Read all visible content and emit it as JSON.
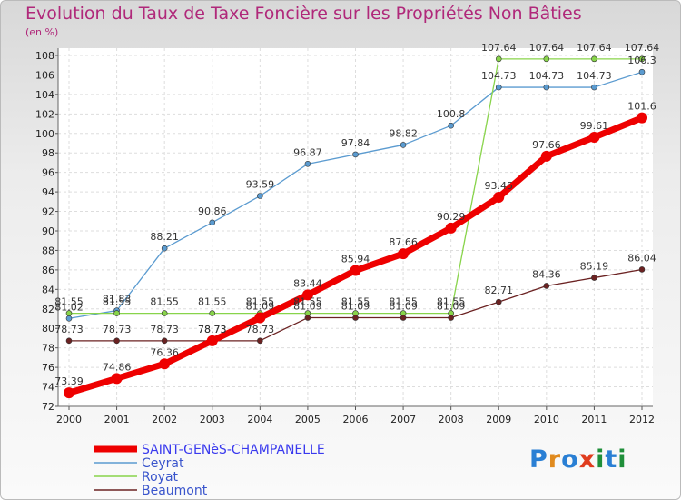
{
  "title": "Evolution du Taux de Taxe Foncière sur les Propriétés Non Bâties",
  "subtitle": "(en %)",
  "logo": {
    "letters": [
      "P",
      "r",
      "o",
      "x",
      "i",
      "t",
      "i"
    ],
    "colors": [
      "#2a7fd4",
      "#e08a1e",
      "#2a7fd4",
      "#e03c1e",
      "#1f8f3a",
      "#2a7fd4",
      "#1f8f3a"
    ]
  },
  "chart_data": {
    "type": "line",
    "x": [
      "2000",
      "2001",
      "2002",
      "2003",
      "2004",
      "2005",
      "2006",
      "2007",
      "2008",
      "2009",
      "2010",
      "2011",
      "2012"
    ],
    "ylim": [
      72,
      108
    ],
    "yticks": [
      "72",
      "74",
      "76",
      "78",
      "80",
      "82",
      "84",
      "86",
      "88",
      "90",
      "92",
      "94",
      "96",
      "98",
      "100",
      "102",
      "104",
      "106",
      "108"
    ],
    "grid": true,
    "legend_position": "bottom-left",
    "series": [
      {
        "name": "SAINT-GENèS-CHAMPANELLE",
        "color": "#ee0000",
        "values": [
          73.39,
          74.86,
          76.36,
          78.73,
          81.09,
          83.44,
          85.94,
          87.66,
          90.29,
          93.45,
          97.66,
          99.61,
          101.6
        ],
        "labels": [
          "73.39",
          "74.86",
          "76.36",
          "78.73",
          "81.09",
          "83.44",
          "85.94",
          "87.66",
          "90.29",
          "93.45",
          "97.66",
          "99.61",
          "101.6"
        ]
      },
      {
        "name": "Ceyrat",
        "color": "#5b9bd0",
        "values": [
          81.02,
          81.83,
          88.21,
          90.86,
          93.59,
          96.87,
          97.84,
          98.82,
          100.8,
          104.73,
          104.73,
          104.73,
          106.3
        ],
        "labels": [
          "81.02",
          "81.83",
          "88.21",
          "90.86",
          "93.59",
          "96.87",
          "97.84",
          "98.82",
          "100.8",
          "104.73",
          "104.73",
          "104.73",
          "106.3"
        ]
      },
      {
        "name": "Royat",
        "color": "#88d44a",
        "values": [
          81.55,
          81.55,
          81.55,
          81.55,
          81.55,
          81.55,
          81.55,
          81.55,
          81.55,
          107.64,
          107.64,
          107.64,
          107.64
        ],
        "labels": [
          "81.55",
          "81.55",
          "81.55",
          "81.55",
          "81.55",
          "81.55",
          "81.55",
          "81.55",
          "81.55",
          "107.64",
          "107.64",
          "107.64",
          "107.64"
        ]
      },
      {
        "name": "Beaumont",
        "color": "#6b2222",
        "values": [
          78.73,
          78.73,
          78.73,
          78.73,
          78.73,
          81.09,
          81.09,
          81.09,
          81.09,
          82.71,
          84.36,
          85.19,
          86.04
        ],
        "labels": [
          "78.73",
          "78.73",
          "78.73",
          "78.73",
          "78.73",
          "81.09",
          "81.09",
          "81.09",
          "81.09",
          "82.71",
          "84.36",
          "85.19",
          "86.04"
        ]
      }
    ]
  }
}
